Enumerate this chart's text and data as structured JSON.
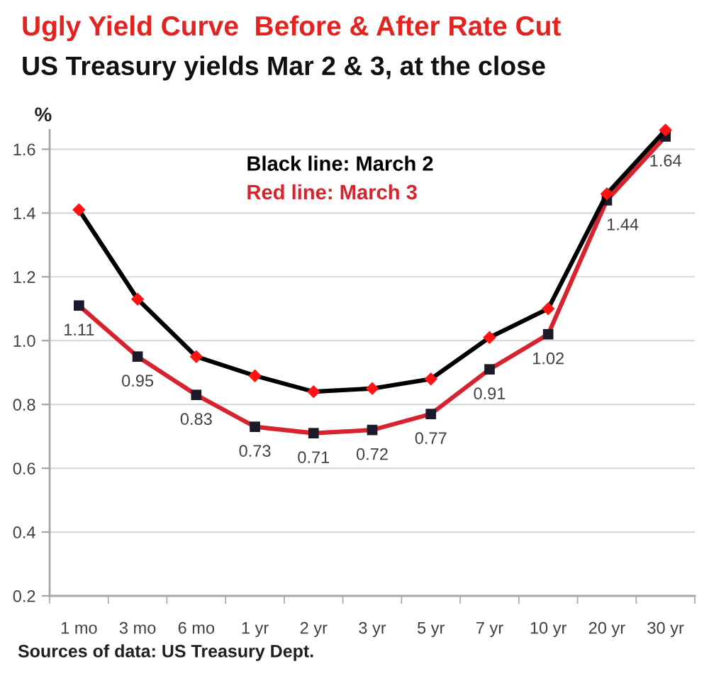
{
  "chart_data": {
    "type": "line",
    "title": "Ugly Yield Curve  Before & After Rate Cut",
    "subtitle": "US Treasury yields Mar 2 & 3, at the close",
    "ylabel": "%",
    "categories": [
      "1 mo",
      "3 mo",
      "6 mo",
      "1 yr",
      "2 yr",
      "3 yr",
      "5 yr",
      "7 yr",
      "10 yr",
      "20 yr",
      "30 yr"
    ],
    "series": [
      {
        "name": "Black line: March 2",
        "color": "#000000",
        "marker": "diamond",
        "colors": [
          "#ff1212",
          "#ff1212",
          "#ff1212",
          "#ff1212",
          "#ff1212",
          "#ff1212",
          "#ff1212",
          "#ff1212",
          "#ff1212",
          "#ff1212",
          "#ff1212"
        ],
        "values": [
          1.41,
          1.13,
          0.95,
          0.89,
          0.84,
          0.85,
          0.88,
          1.01,
          1.1,
          1.46,
          1.66
        ]
      },
      {
        "name": "Red line: March 3",
        "color": "#d8222d",
        "marker": "square",
        "colors": [
          "#1c1a2a",
          "#1c1a2a",
          "#1c1a2a",
          "#1c1a2a",
          "#1c1a2a",
          "#1c1a2a",
          "#1c1a2a",
          "#1c1a2a",
          "#1c1a2a",
          "#1c1a2a",
          "#1c1a2a"
        ],
        "values": [
          1.11,
          0.95,
          0.83,
          0.73,
          0.71,
          0.72,
          0.77,
          0.91,
          1.02,
          1.44,
          1.64
        ],
        "value_labels": [
          "1.11",
          "0.95",
          "0.83",
          "0.73",
          "0.71",
          "0.72",
          "0.77",
          "0.91",
          "1.02",
          "1.44",
          "1.64"
        ]
      }
    ],
    "ylim": [
      0.2,
      1.66
    ],
    "yticks": [
      0.2,
      0.4,
      0.6,
      0.8,
      {
        "value": 1,
        "label": "1.0"
      },
      1.2,
      1.4,
      1.6
    ],
    "grid": "y",
    "legend": "top",
    "line_style": "solid",
    "annotations": [
      "Sources of data: US Treasury Dept."
    ]
  }
}
